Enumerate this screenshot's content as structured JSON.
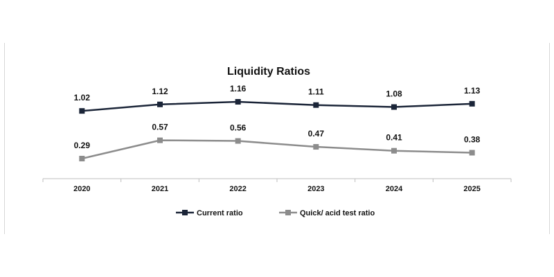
{
  "chart_data": {
    "type": "line",
    "title": "Liquidity Ratios",
    "xlabel": "",
    "ylabel": "",
    "x": [
      "2020",
      "2021",
      "2022",
      "2023",
      "2024",
      "2025"
    ],
    "ylim": [
      0,
      1.4
    ],
    "grid": false,
    "legend": "bottom",
    "series": [
      {
        "name": "Current ratio",
        "color": "#1b2538",
        "values": [
          1.02,
          1.12,
          1.16,
          1.11,
          1.08,
          1.13
        ],
        "labels": [
          "1.02",
          "1.12",
          "1.16",
          "1.11",
          "1.08",
          "1.13"
        ]
      },
      {
        "name": "Quick/ acid test ratio",
        "color": "#8c8c8c",
        "values": [
          0.29,
          0.57,
          0.56,
          0.47,
          0.41,
          0.38
        ],
        "labels": [
          "0.29",
          "0.57",
          "0.56",
          "0.47",
          "0.41",
          "0.38"
        ]
      }
    ]
  }
}
